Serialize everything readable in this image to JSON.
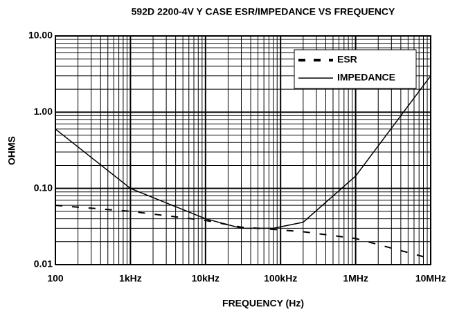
{
  "chart_data": {
    "type": "line",
    "title": "592D 2200-4V Y CASE ESR/IMPEDANCE VS FREQUENCY",
    "x_label": "FREQUENCY (Hz)",
    "y_label": "OHMS",
    "x": [
      100,
      1000,
      10000,
      30000,
      80000,
      200000,
      1000000,
      10000000
    ],
    "series": [
      {
        "name": "ESR",
        "color": "#000000",
        "dash": true,
        "values": [
          0.06,
          0.05,
          0.038,
          0.031,
          0.029,
          0.027,
          0.022,
          0.012
        ]
      },
      {
        "name": "IMPEDANCE",
        "color": "#000000",
        "dash": false,
        "values": [
          0.6,
          0.1,
          0.04,
          0.03,
          0.03,
          0.036,
          0.145,
          3
        ]
      }
    ],
    "xlim": [
      100,
      10000000
    ],
    "ylim": [
      0.01,
      10
    ],
    "xticks": [
      100,
      {
        "value": 1000,
        "label": "1kHz"
      },
      {
        "value": 10000,
        "label": "10kHz"
      },
      {
        "value": 100000,
        "label": "100kHz"
      },
      {
        "value": 1000000,
        "label": "1MHz"
      },
      {
        "value": 10000000,
        "label": "10MHz"
      }
    ],
    "yticks": [
      {
        "value": 0.01,
        "label": "0.01"
      },
      {
        "value": 0.1,
        "label": "0.10"
      },
      {
        "value": 1,
        "label": "1.00"
      },
      {
        "value": 10,
        "label": "10.00"
      }
    ],
    "log_x": true,
    "log_y": true,
    "grid": true,
    "legend": "upper right"
  }
}
